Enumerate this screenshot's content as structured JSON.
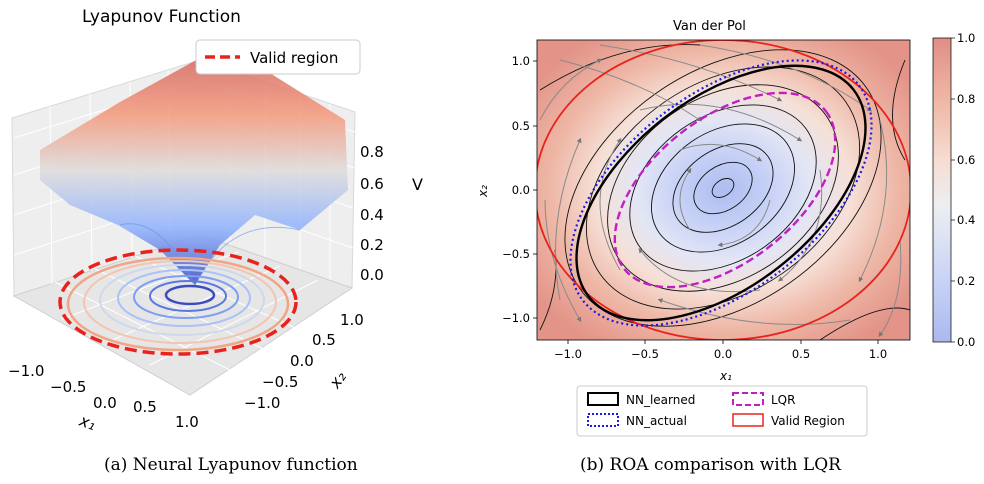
{
  "left_panel": {
    "title": "Lyapunov Function",
    "legend_label": "Valid region",
    "v_axis_label": "V",
    "x1_label": "x₁",
    "x2_label": "x₂",
    "v_ticks": [
      "0.8",
      "0.6",
      "0.4",
      "0.2",
      "0.0"
    ],
    "x1_ticks": [
      "−1.0",
      "−0.5",
      "0.0",
      "0.5",
      "1.0"
    ],
    "x2_ticks": [
      "1.0",
      "0.5",
      "0.0",
      "−0.5",
      "−1.0"
    ],
    "caption": "(a) Neural Lyapunov function"
  },
  "right_panel": {
    "title": "Van der Pol",
    "x_label": "x₁",
    "y_label": "x₂",
    "colorbar_ticks": [
      "1.0",
      "0.8",
      "0.6",
      "0.4",
      "0.2",
      "0.0"
    ],
    "legend": {
      "nn_learned": "NN_learned",
      "lqr": "LQR",
      "nn_actual": "NN_actual",
      "valid_region": "Valid Region"
    },
    "caption": "(b) ROA comparison with LQR"
  },
  "colors": {
    "valid_region": "#e8231c",
    "lqr": "#c21fc1",
    "nn_actual": "#1a19e6",
    "nn_learned": "#000000",
    "cmap_low": "#3b4cc0",
    "cmap_high": "#b40426"
  },
  "chart_data": [
    {
      "type": "surface3d",
      "title": "Lyapunov Function",
      "zlabel": "V",
      "xlabel": "x₁",
      "ylabel": "x₂",
      "xlim": [
        -1.2,
        1.2
      ],
      "ylim": [
        -1.2,
        1.2
      ],
      "zlim": [
        0.0,
        1.0
      ],
      "zticks": [
        0.0,
        0.2,
        0.4,
        0.6,
        0.8
      ],
      "xticks": [
        -1.0,
        -0.5,
        0.0,
        0.5,
        1.0
      ],
      "yticks": [
        -1.0,
        -0.5,
        0.0,
        0.5,
        1.0
      ],
      "colormap": "coolwarm",
      "legend": [
        "Valid region"
      ],
      "legend_placement": "top-right"
    },
    {
      "type": "contour",
      "title": "Van der Pol",
      "xlabel": "x₁",
      "ylabel": "x₂",
      "xlim": [
        -1.2,
        1.2
      ],
      "ylim": [
        -1.2,
        1.2
      ],
      "xticks": [
        -1.0,
        -0.5,
        0.0,
        0.5,
        1.0
      ],
      "yticks": [
        -1.0,
        -0.5,
        0.0,
        0.5,
        1.0
      ],
      "colorbar": [
        0.0,
        0.2,
        0.4,
        0.6,
        0.8,
        1.0
      ],
      "colormap": "coolwarm",
      "series": [
        {
          "name": "NN_learned",
          "style": "solid",
          "color": "#000000"
        },
        {
          "name": "NN_actual",
          "style": "dotted",
          "color": "#1a19e6"
        },
        {
          "name": "LQR",
          "style": "dashed",
          "color": "#c21fc1"
        },
        {
          "name": "Valid Region",
          "style": "solid",
          "color": "#e8231c"
        }
      ],
      "legend_placement": "bottom"
    }
  ]
}
